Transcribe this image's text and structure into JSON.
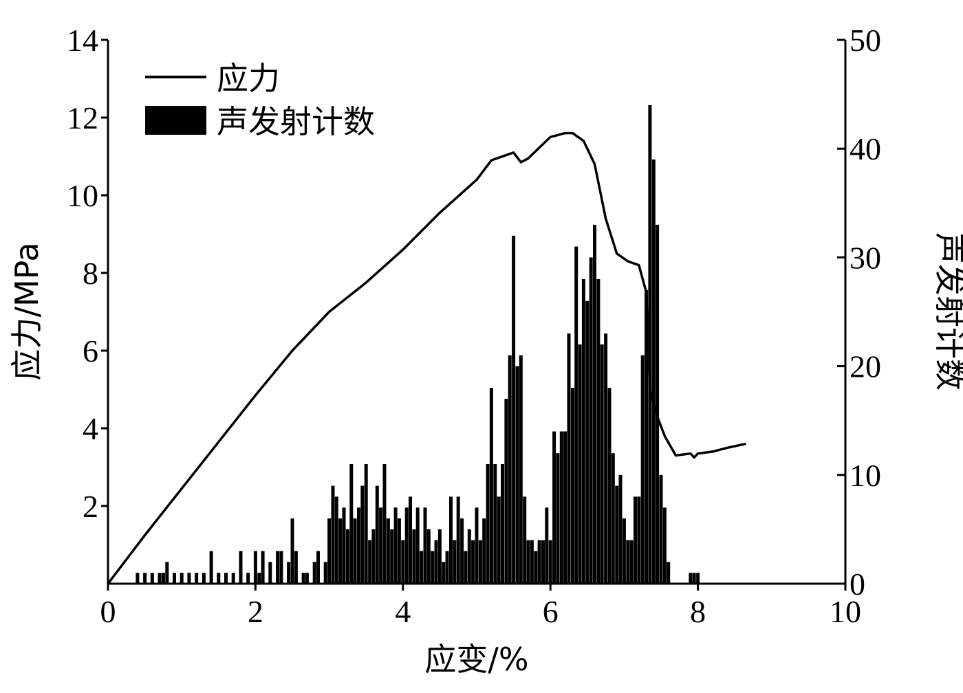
{
  "chart_data": {
    "type": "line+bar",
    "xlabel": "应变/%",
    "ylabel_left": "应力/MPa",
    "ylabel_right": "声发射计数",
    "xlim": [
      0,
      10
    ],
    "ylim_left": [
      0,
      14
    ],
    "ylim_right": [
      0,
      50
    ],
    "x_ticks": [
      "0",
      "2",
      "4",
      "6",
      "8",
      "10"
    ],
    "y_ticks_left": [
      "2",
      "4",
      "6",
      "8",
      "10",
      "12",
      "14"
    ],
    "y_ticks_right": [
      "0",
      "10",
      "20",
      "30",
      "40",
      "50"
    ],
    "grid": false,
    "legend_position": "top-left",
    "legend": {
      "stress": "应力",
      "ae": "声发射计数"
    },
    "colors": {
      "stress": "#000000",
      "ae": "#000000",
      "axis": "#000000"
    },
    "series": [
      {
        "name": "应力",
        "axis": "left",
        "kind": "line",
        "x": [
          0,
          0.5,
          1.0,
          1.5,
          2.0,
          2.5,
          3.0,
          3.5,
          4.0,
          4.5,
          5.0,
          5.2,
          5.5,
          5.6,
          5.7,
          6.0,
          6.2,
          6.3,
          6.45,
          6.6,
          6.75,
          6.9,
          7.05,
          7.2,
          7.3,
          7.35,
          7.45,
          7.55,
          7.7,
          7.9,
          7.95,
          8.0,
          8.2,
          8.4,
          8.65
        ],
        "y": [
          0,
          1.25,
          2.45,
          3.65,
          4.85,
          6.0,
          7.0,
          7.75,
          8.6,
          9.55,
          10.4,
          10.9,
          11.1,
          10.85,
          10.95,
          11.5,
          11.6,
          11.6,
          11.4,
          10.8,
          9.4,
          8.5,
          8.3,
          8.2,
          7.5,
          5.0,
          4.3,
          3.8,
          3.3,
          3.35,
          3.25,
          3.35,
          3.4,
          3.5,
          3.6
        ]
      },
      {
        "name": "声发射计数",
        "axis": "right",
        "kind": "bar",
        "x": [
          0.4,
          0.5,
          0.6,
          0.7,
          0.75,
          0.8,
          0.9,
          1.0,
          1.1,
          1.2,
          1.3,
          1.4,
          1.5,
          1.6,
          1.7,
          1.8,
          1.9,
          2.0,
          2.05,
          2.1,
          2.2,
          2.3,
          2.35,
          2.45,
          2.5,
          2.55,
          2.65,
          2.7,
          2.8,
          2.85,
          2.95,
          3.0,
          3.05,
          3.1,
          3.15,
          3.2,
          3.25,
          3.3,
          3.35,
          3.4,
          3.45,
          3.5,
          3.55,
          3.6,
          3.65,
          3.7,
          3.75,
          3.8,
          3.85,
          3.9,
          3.95,
          4.0,
          4.05,
          4.1,
          4.15,
          4.2,
          4.25,
          4.3,
          4.35,
          4.4,
          4.45,
          4.5,
          4.55,
          4.6,
          4.65,
          4.7,
          4.75,
          4.8,
          4.85,
          4.9,
          4.95,
          5.0,
          5.05,
          5.1,
          5.15,
          5.2,
          5.25,
          5.3,
          5.35,
          5.4,
          5.45,
          5.5,
          5.55,
          5.6,
          5.65,
          5.7,
          5.75,
          5.8,
          5.85,
          5.9,
          5.95,
          6.0,
          6.05,
          6.1,
          6.15,
          6.2,
          6.25,
          6.3,
          6.35,
          6.4,
          6.45,
          6.5,
          6.55,
          6.6,
          6.65,
          6.7,
          6.75,
          6.8,
          6.85,
          6.9,
          6.95,
          7.0,
          7.05,
          7.1,
          7.15,
          7.2,
          7.25,
          7.3,
          7.35,
          7.4,
          7.45,
          7.5,
          7.55,
          7.6,
          7.7,
          7.8,
          7.9,
          7.95,
          8.0
        ],
        "y": [
          1,
          1,
          1,
          1,
          1,
          2,
          1,
          1,
          1,
          1,
          1,
          3,
          1,
          1,
          1,
          3,
          1,
          3,
          1,
          3,
          2,
          3,
          3,
          2,
          6,
          3,
          1,
          1,
          2,
          3,
          2,
          6,
          9,
          8,
          6,
          7,
          5,
          11,
          6,
          7,
          9,
          11,
          4,
          5,
          9,
          7,
          11,
          6,
          5,
          7,
          6,
          4,
          7,
          8,
          5,
          7,
          3,
          7,
          5,
          3,
          4,
          5,
          2,
          3,
          8,
          4,
          8,
          6,
          3,
          5,
          4,
          7,
          4,
          6,
          11,
          18,
          11,
          8,
          11,
          17,
          21,
          32,
          20,
          21,
          8,
          4,
          4,
          3,
          4,
          4,
          7,
          4,
          14,
          12,
          14,
          14,
          23,
          18,
          31,
          22,
          28,
          26,
          30,
          33,
          28,
          22,
          23,
          18,
          12,
          9,
          10,
          6,
          4,
          4,
          8,
          8,
          21,
          27,
          44,
          39,
          33,
          10,
          7,
          2,
          0,
          0,
          1,
          1,
          1
        ]
      }
    ]
  }
}
